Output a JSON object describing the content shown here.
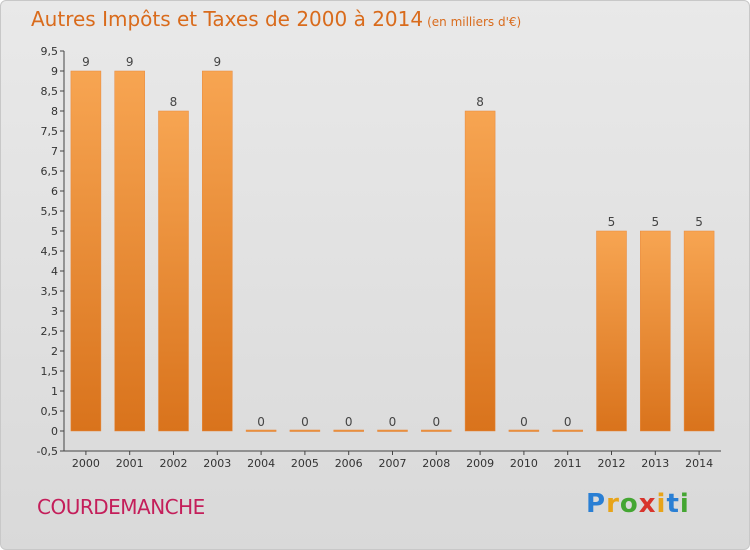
{
  "header": {
    "title": "Autres Impôts et Taxes de 2000 à 2014",
    "unit": "(en milliers d'€)"
  },
  "footer": {
    "location": "COURDEMANCHE",
    "logo_text": "Proxiti",
    "logo_colors": [
      "#2a7fd4",
      "#e8a419",
      "#44a632",
      "#d8342c",
      "#e8a419",
      "#2a7fd4",
      "#44a632"
    ]
  },
  "chart_data": {
    "type": "bar",
    "title": "Autres Impôts et Taxes de 2000 à 2014",
    "categories": [
      "2000",
      "2001",
      "2002",
      "2003",
      "2004",
      "2005",
      "2006",
      "2007",
      "2008",
      "2009",
      "2010",
      "2011",
      "2012",
      "2013",
      "2014"
    ],
    "values": [
      9,
      9,
      8,
      9,
      0,
      0,
      0,
      0,
      0,
      8,
      0,
      0,
      5,
      5,
      5
    ],
    "ylim": [
      -0.5,
      9.5
    ],
    "yticks": [
      "-0,5",
      "0",
      "0,5",
      "1",
      "1,5",
      "2",
      "2,5",
      "3",
      "3,5",
      "4",
      "4,5",
      "5",
      "5,5",
      "6",
      "6,5",
      "7",
      "7,5",
      "8",
      "8,5",
      "9",
      "9,5"
    ],
    "grid": false,
    "bar_color": "#f0923a"
  }
}
